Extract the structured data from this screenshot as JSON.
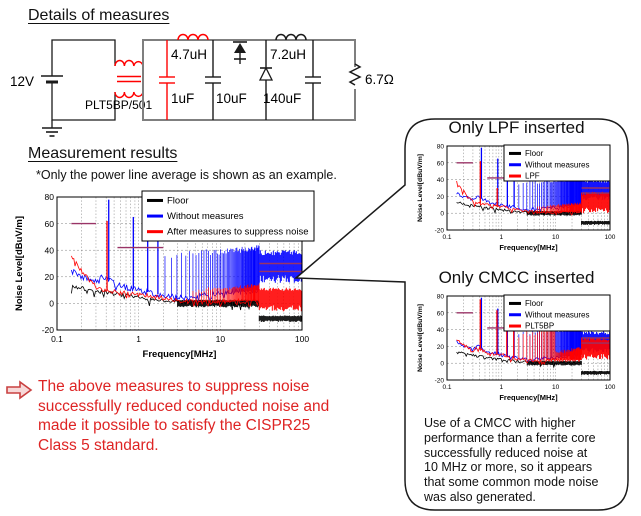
{
  "headings": {
    "details": "Details of measures",
    "results": "Measurement results",
    "note": "*Only the power line average is shown as an example."
  },
  "circuit": {
    "accent_color": "#ff0000",
    "wire_color": "#7f7f7f",
    "labels": {
      "source": "12V",
      "cmcc": "PLT5BP/501",
      "lpf_inductor": "4.7uH",
      "lpf_capacitor": "1uF",
      "cap1": "10uF",
      "cap2": "140uF",
      "out_inductor": "7.2uH",
      "load": "6.7Ω"
    }
  },
  "conclusion": {
    "text": "The above measures to suppress noise\nsuccessfully reduced conducted noise and\nmade it possible to satisfy the CISPR25\nClass 5 standard."
  },
  "callout": {
    "body": "Use of a CMCC with higher\nperformance than a ferrite core\nsuccessfully reduced noise at\n10 MHz or more, so it appears\nthat some common mode noise\nwas also generated."
  },
  "chart_data": [
    {
      "id": "main",
      "type": "line",
      "title": "",
      "xlabel": "Frequency[MHz]",
      "ylabel": "Noise Level[dBuV/m]",
      "xscale": "log",
      "xlim": [
        0.1,
        100
      ],
      "ylim": [
        -20,
        80
      ],
      "xticks": [
        0.1,
        1,
        10,
        100
      ],
      "yticks": [
        80,
        60,
        40,
        20,
        0,
        -20
      ],
      "grid": true,
      "legend_position": "top-right",
      "limit_color": "#993366",
      "limit_lines": [
        {
          "y": 60,
          "x1": 0.15,
          "x2": 0.3
        },
        {
          "y": 42,
          "x1": 0.55,
          "x2": 2
        },
        {
          "y": 30,
          "x1": 30,
          "x2": 100
        },
        {
          "y": 24,
          "x1": 30,
          "x2": 100
        }
      ],
      "legend": [
        {
          "label": "Floor",
          "color": "#000000"
        },
        {
          "label": "Without measures",
          "color": "#0000ff"
        },
        {
          "label": "After measures to suppress noise",
          "color": "#ff0000"
        }
      ],
      "series": [
        {
          "name": "Floor",
          "color": "#000000",
          "jitter": 1.6,
          "baseline": [
            [
              0.15,
              13
            ],
            [
              0.25,
              10
            ],
            [
              0.5,
              7
            ],
            [
              1,
              4
            ],
            [
              2,
              2
            ],
            [
              3,
              1
            ],
            [
              30,
              0
            ]
          ],
          "bands": [
            {
              "x1": 3,
              "x2": 30,
              "lo": -3,
              "hi": 3
            },
            {
              "x1": 30,
              "x2": 100,
              "lo": -14,
              "hi": -9
            }
          ]
        },
        {
          "name": "Without measures",
          "color": "#0000ff",
          "jitter": 2.2,
          "baseline": [
            [
              0.15,
              26
            ],
            [
              0.2,
              20
            ],
            [
              0.3,
              16
            ],
            [
              0.38,
              21
            ],
            [
              0.45,
              17
            ],
            [
              0.6,
              13
            ],
            [
              1,
              10
            ],
            [
              2,
              6
            ],
            [
              3,
              4
            ],
            [
              5,
              5
            ],
            [
              10,
              7
            ],
            [
              20,
              9
            ],
            [
              30,
              10
            ]
          ],
          "spikes": [
            [
              0.43,
              78
            ],
            [
              0.86,
              65
            ],
            [
              1.29,
              55
            ],
            [
              1.72,
              48
            ]
          ],
          "harmonics": [
            {
              "step": 0.42,
              "from": 2.1,
              "to": 30,
              "lo": 33,
              "hi": 44
            }
          ],
          "bands": [
            {
              "x1": 30,
              "x2": 100,
              "lo": 15,
              "hi": 40
            }
          ]
        },
        {
          "name": "After measures to suppress noise",
          "color": "#ff0000",
          "jitter": 1.8,
          "baseline": [
            [
              0.15,
              36
            ],
            [
              0.2,
              24
            ],
            [
              0.3,
              12
            ],
            [
              0.5,
              9
            ],
            [
              1,
              7
            ],
            [
              2,
              4
            ],
            [
              3,
              2
            ],
            [
              5,
              1
            ],
            [
              10,
              1
            ],
            [
              20,
              2
            ],
            [
              30,
              2
            ]
          ],
          "spikes": [
            [
              0.41,
              62
            ]
          ],
          "harmonics": [
            {
              "step": 0.42,
              "from": 4.5,
              "to": 30,
              "lo": 8,
              "hi": 15
            }
          ],
          "bands": [
            {
              "x1": 30,
              "x2": 100,
              "lo": -6,
              "hi": 12
            }
          ]
        }
      ]
    },
    {
      "id": "lpf",
      "type": "line",
      "title": "Only LPF inserted",
      "xlabel": "Frequency[MHz]",
      "ylabel": "Noise Level[dBuV/m]",
      "xscale": "log",
      "xlim": [
        0.1,
        100
      ],
      "ylim": [
        -20,
        80
      ],
      "xticks": [
        0.1,
        1,
        10,
        100
      ],
      "yticks": [
        80,
        60,
        40,
        20,
        0,
        -20
      ],
      "grid": true,
      "legend_position": "top-right",
      "limit_color": "#993366",
      "limit_lines": [
        {
          "y": 60,
          "x1": 0.15,
          "x2": 0.3
        },
        {
          "y": 42,
          "x1": 0.55,
          "x2": 2
        },
        {
          "y": 30,
          "x1": 30,
          "x2": 100
        },
        {
          "y": 24,
          "x1": 30,
          "x2": 100
        }
      ],
      "legend": [
        {
          "label": "Floor",
          "color": "#000000"
        },
        {
          "label": "Without measures",
          "color": "#0000ff"
        },
        {
          "label": "LPF",
          "color": "#ff0000"
        }
      ],
      "series": [
        {
          "name": "Floor",
          "color": "#000000",
          "jitter": 1.6,
          "baseline": [
            [
              0.15,
              13
            ],
            [
              0.25,
              10
            ],
            [
              0.5,
              7
            ],
            [
              1,
              4
            ],
            [
              2,
              2
            ],
            [
              3,
              1
            ],
            [
              30,
              0
            ]
          ],
          "bands": [
            {
              "x1": 3,
              "x2": 30,
              "lo": -3,
              "hi": 3
            },
            {
              "x1": 30,
              "x2": 100,
              "lo": -14,
              "hi": -9
            }
          ]
        },
        {
          "name": "Without measures",
          "color": "#0000ff",
          "jitter": 2.2,
          "baseline": [
            [
              0.15,
              26
            ],
            [
              0.2,
              20
            ],
            [
              0.3,
              16
            ],
            [
              0.38,
              21
            ],
            [
              0.45,
              17
            ],
            [
              0.6,
              13
            ],
            [
              1,
              10
            ],
            [
              2,
              6
            ],
            [
              3,
              4
            ],
            [
              5,
              5
            ],
            [
              10,
              7
            ],
            [
              20,
              9
            ],
            [
              30,
              10
            ]
          ],
          "spikes": [
            [
              0.43,
              78
            ],
            [
              0.86,
              65
            ],
            [
              1.29,
              55
            ],
            [
              1.72,
              48
            ]
          ],
          "harmonics": [
            {
              "step": 0.42,
              "from": 2.1,
              "to": 30,
              "lo": 33,
              "hi": 44
            }
          ],
          "bands": [
            {
              "x1": 30,
              "x2": 100,
              "lo": 15,
              "hi": 40
            }
          ]
        },
        {
          "name": "LPF",
          "color": "#ff0000",
          "jitter": 1.8,
          "baseline": [
            [
              0.15,
              38
            ],
            [
              0.2,
              26
            ],
            [
              0.3,
              13
            ],
            [
              0.5,
              10
            ],
            [
              1,
              8
            ],
            [
              2,
              4
            ],
            [
              3,
              2
            ],
            [
              5,
              1
            ],
            [
              10,
              1
            ],
            [
              30,
              2
            ]
          ],
          "spikes": [
            [
              0.41,
              62
            ],
            [
              0.84,
              30
            ]
          ],
          "harmonics": [
            {
              "step": 0.42,
              "from": 4.5,
              "to": 30,
              "lo": 6,
              "hi": 13
            }
          ],
          "bands": [
            {
              "x1": 30,
              "x2": 100,
              "lo": 0,
              "hi": 26
            }
          ]
        }
      ]
    },
    {
      "id": "cmcc",
      "type": "line",
      "title": "Only CMCC inserted",
      "xlabel": "Frequency[MHz]",
      "ylabel": "Noise Level[dBuV/m]",
      "xscale": "log",
      "xlim": [
        0.1,
        100
      ],
      "ylim": [
        -20,
        80
      ],
      "xticks": [
        0.1,
        1,
        10,
        100
      ],
      "yticks": [
        80,
        60,
        40,
        20,
        0,
        -20
      ],
      "grid": true,
      "legend_position": "top-right",
      "limit_color": "#993366",
      "limit_lines": [
        {
          "y": 60,
          "x1": 0.15,
          "x2": 0.3
        },
        {
          "y": 42,
          "x1": 0.55,
          "x2": 2
        },
        {
          "y": 30,
          "x1": 30,
          "x2": 100
        },
        {
          "y": 24,
          "x1": 30,
          "x2": 100
        }
      ],
      "legend": [
        {
          "label": "Floor",
          "color": "#000000"
        },
        {
          "label": "Without measures",
          "color": "#0000ff"
        },
        {
          "label": "PLT5BP",
          "color": "#ff0000"
        }
      ],
      "series": [
        {
          "name": "Floor",
          "color": "#000000",
          "jitter": 1.6,
          "baseline": [
            [
              0.15,
              13
            ],
            [
              0.25,
              10
            ],
            [
              0.5,
              7
            ],
            [
              1,
              4
            ],
            [
              2,
              2
            ],
            [
              3,
              1
            ],
            [
              30,
              0
            ]
          ],
          "bands": [
            {
              "x1": 3,
              "x2": 30,
              "lo": -3,
              "hi": 3
            },
            {
              "x1": 30,
              "x2": 100,
              "lo": -14,
              "hi": -9
            }
          ]
        },
        {
          "name": "Without measures",
          "color": "#0000ff",
          "jitter": 2.2,
          "baseline": [
            [
              0.15,
              26
            ],
            [
              0.2,
              20
            ],
            [
              0.3,
              16
            ],
            [
              0.38,
              21
            ],
            [
              0.45,
              17
            ],
            [
              0.6,
              13
            ],
            [
              1,
              10
            ],
            [
              2,
              6
            ],
            [
              3,
              4
            ],
            [
              5,
              5
            ],
            [
              10,
              7
            ],
            [
              20,
              9
            ],
            [
              30,
              10
            ]
          ],
          "spikes": [
            [
              0.43,
              78
            ],
            [
              0.86,
              65
            ],
            [
              1.29,
              55
            ],
            [
              1.72,
              48
            ]
          ],
          "harmonics": [
            {
              "step": 0.42,
              "from": 2.1,
              "to": 30,
              "lo": 33,
              "hi": 44
            }
          ],
          "bands": [
            {
              "x1": 30,
              "x2": 100,
              "lo": 12,
              "hi": 38
            }
          ]
        },
        {
          "name": "PLT5BP",
          "color": "#ff0000",
          "jitter": 2,
          "baseline": [
            [
              0.15,
              28
            ],
            [
              0.2,
              22
            ],
            [
              0.3,
              15
            ],
            [
              0.38,
              19
            ],
            [
              0.5,
              13
            ],
            [
              1,
              10
            ],
            [
              2,
              5
            ],
            [
              3,
              3
            ],
            [
              5,
              3
            ],
            [
              10,
              4
            ],
            [
              30,
              4
            ]
          ],
          "spikes": [
            [
              0.41,
              76
            ],
            [
              0.83,
              63
            ],
            [
              1.26,
              54
            ],
            [
              1.69,
              47
            ]
          ],
          "harmonics": [
            {
              "step": 0.42,
              "from": 2.1,
              "to": 10,
              "lo": 28,
              "hi": 52
            },
            {
              "step": 0.42,
              "from": 10,
              "to": 30,
              "lo": 10,
              "hi": 20
            }
          ],
          "bands": [
            {
              "x1": 30,
              "x2": 100,
              "lo": 4,
              "hi": 31
            }
          ]
        }
      ]
    }
  ]
}
